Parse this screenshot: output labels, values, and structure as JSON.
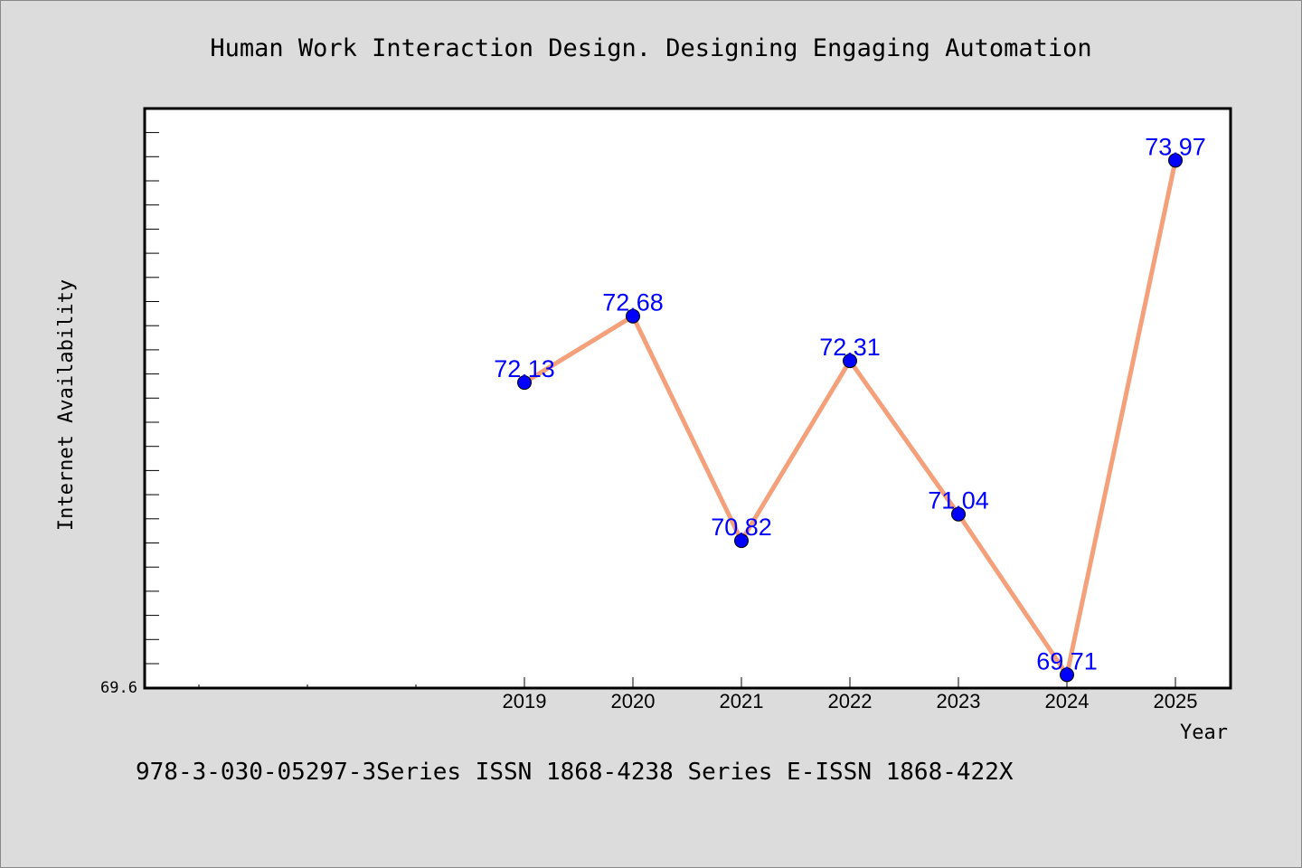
{
  "chart_data": {
    "type": "line",
    "title": "Human Work Interaction Design. Designing Engaging Automation",
    "xlabel": "Year",
    "ylabel": "Internet Availability",
    "categories": [
      "2019",
      "2020",
      "2021",
      "2022",
      "2023",
      "2024",
      "2025"
    ],
    "values": [
      72.13,
      72.68,
      70.82,
      72.31,
      71.04,
      69.71,
      73.97
    ],
    "value_labels": [
      "72.13",
      "72.68",
      "70.82",
      "72.31",
      "71.04",
      "69.71",
      "73.97"
    ],
    "y_tick_labels": [
      "69.6"
    ],
    "ylim": [
      69.6,
      74.4
    ],
    "grid": false,
    "line_color": "#f4a07a",
    "marker_color": "#0000ff",
    "label_color": "#0000ff"
  },
  "footer": "978-3-030-05297-3Series ISSN 1868-4238 Series E-ISSN 1868-422X"
}
